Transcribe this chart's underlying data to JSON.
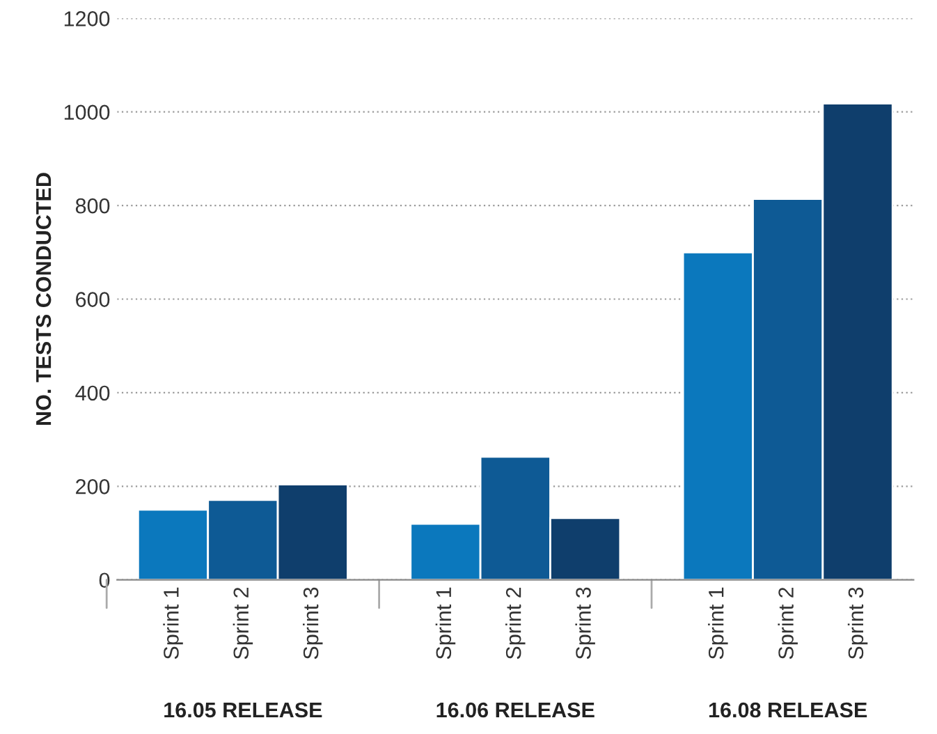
{
  "chart_data": {
    "type": "bar",
    "ylabel": "NO. TESTS CONDUCTED",
    "categories": [
      "Sprint 1",
      "Sprint 2",
      "Sprint 3",
      "Sprint 1",
      "Sprint 2",
      "Sprint 3",
      "Sprint 1",
      "Sprint 2",
      "Sprint 3"
    ],
    "values": [
      150,
      171,
      204,
      120,
      263,
      132,
      700,
      814,
      1018
    ],
    "colors": [
      "#0b78bd",
      "#0e5a95",
      "#0f3e6c",
      "#0b78bd",
      "#0e5a95",
      "#0f3e6c",
      "#0b78bd",
      "#0e5a95",
      "#0f3e6c"
    ],
    "annotations": [
      "16.05 RELEASE",
      "16.06 RELEASE",
      "16.08 RELEASE"
    ],
    "ylim": [
      0,
      1200
    ],
    "yticks": [
      0,
      200,
      400,
      600,
      800,
      1000,
      1200
    ],
    "grid": "y"
  }
}
